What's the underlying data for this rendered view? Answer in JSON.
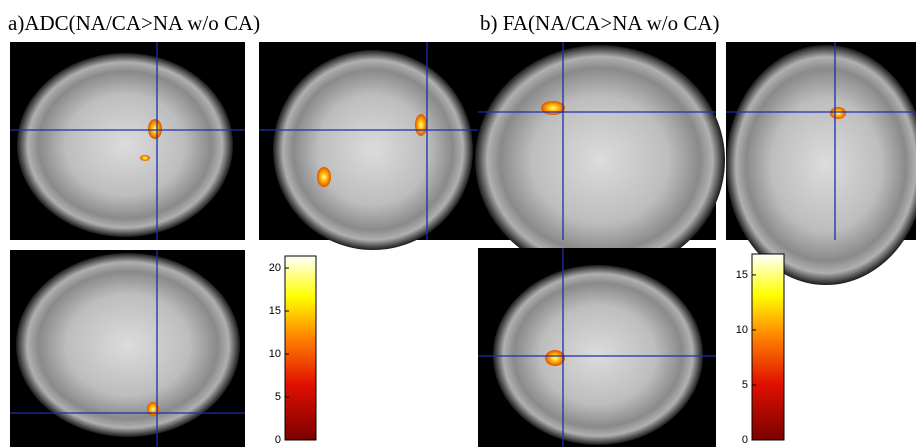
{
  "panels": [
    {
      "title": "a)ADC(NA/CA>NA w/o CA)",
      "colorbar": {
        "lim": [
          0,
          21.4
        ],
        "ticks": [
          0,
          5,
          10,
          15,
          20
        ]
      }
    },
    {
      "title": "b) FA(NA/CA>NA w/o CA)",
      "colorbar": {
        "lim": [
          0,
          16.9
        ],
        "ticks": [
          0,
          5,
          10,
          15
        ]
      }
    }
  ]
}
